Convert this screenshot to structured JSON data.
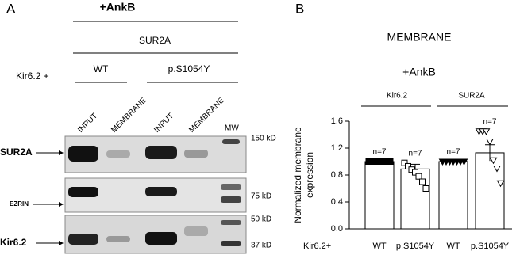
{
  "panel_a": {
    "letter": "A",
    "treatment": "+AnkB",
    "subunit": "SUR2A",
    "row_prefix": "Kir6.2 +",
    "genotypes": [
      "WT",
      "p.S1054Y"
    ],
    "lanes": [
      "INPUT",
      "MEMBRANE",
      "INPUT",
      "MEMBRANE",
      "MW"
    ],
    "blot_rows": [
      "SUR2A",
      "EZRIN",
      "Kir6.2"
    ],
    "mw_labels": [
      "150 kD",
      "75 kD",
      "50 kD",
      "37 kD"
    ]
  },
  "chart_data": {
    "type": "bar",
    "letter": "B",
    "title": "MEMBRANE",
    "subtitle": "+AnkB",
    "groups": [
      "Kir6.2",
      "SUR2A"
    ],
    "row_label": "Kir6.2+",
    "ylabel": [
      "Normalized membrane",
      "expression"
    ],
    "categories": [
      "WT",
      "p.S1054Y",
      "WT",
      "p.S1054Y"
    ],
    "values": [
      1.0,
      0.89,
      1.0,
      1.13
    ],
    "errors": [
      0,
      0.07,
      0,
      0.12
    ],
    "annotations": [
      "n=7",
      "n=7",
      "n=7",
      "n=7"
    ],
    "points": [
      [
        1,
        1,
        1,
        1,
        1,
        1,
        1
      ],
      [
        0.98,
        0.93,
        0.88,
        0.84,
        0.78,
        0.7,
        0.6
      ],
      [
        1,
        1,
        1,
        1,
        1,
        1,
        1
      ],
      [
        1.45,
        1.45,
        1.45,
        1.3,
        1.02,
        0.9,
        0.68
      ]
    ],
    "point_markers": [
      "square",
      "square",
      "triangle",
      "triangle"
    ],
    "point_fill": [
      "#000000",
      "#ffffff",
      "#000000",
      "#ffffff"
    ],
    "color": "#ffffff",
    "ylim": [
      0,
      1.6
    ],
    "yticks": [
      {
        "value": 0,
        "label": "0.0"
      },
      0.4,
      0.8,
      1.2,
      1.6
    ]
  }
}
